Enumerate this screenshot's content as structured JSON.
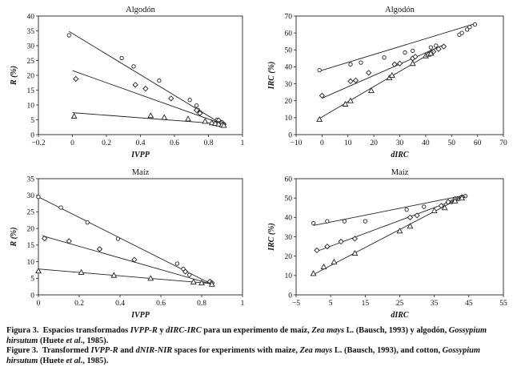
{
  "chart_data": [
    {
      "type": "scatter",
      "title": "Algodón",
      "xlabel": "IVPP",
      "ylabel": "R (%)",
      "xlim": [
        -0.2,
        1
      ],
      "ylim": [
        0,
        40
      ],
      "xticks": [
        "−0.2",
        "0",
        "0.2",
        "0.4",
        "0.6",
        "0.8",
        "1"
      ],
      "yticks": [
        "0",
        "5",
        "10",
        "15",
        "20",
        "25",
        "30",
        "35",
        "40"
      ],
      "series": [
        {
          "name": "circles",
          "marker": "circle",
          "x": [
            -0.02,
            0.29,
            0.36,
            0.51,
            0.69,
            0.73,
            0.74,
            0.75,
            0.85,
            0.87,
            0.88,
            0.89
          ],
          "y": [
            33.5,
            25.8,
            23.0,
            18.2,
            11.7,
            9.8,
            8.2,
            7.5,
            5.0,
            4.3,
            3.8,
            3.5
          ],
          "fit": [
            [
              -0.02,
              34.8
            ],
            [
              0.9,
              2.8
            ]
          ]
        },
        {
          "name": "diamonds",
          "marker": "diamond",
          "x": [
            0.02,
            0.37,
            0.43,
            0.58,
            0.73,
            0.75,
            0.86,
            0.88,
            0.89
          ],
          "y": [
            18.8,
            16.8,
            15.5,
            12.2,
            8.2,
            7.2,
            4.8,
            4.0,
            3.5
          ],
          "fit": [
            [
              0.0,
              21.6
            ],
            [
              0.9,
              3.2
            ]
          ]
        },
        {
          "name": "triangles",
          "marker": "triangle",
          "x": [
            0.01,
            0.46,
            0.54,
            0.68,
            0.78,
            0.82,
            0.84,
            0.86,
            0.88,
            0.89
          ],
          "y": [
            6.2,
            6.4,
            5.8,
            5.3,
            4.5,
            4.0,
            3.8,
            3.6,
            3.3,
            3.1
          ],
          "fit": [
            [
              0.0,
              7.4
            ],
            [
              0.9,
              3.5
            ]
          ]
        }
      ]
    },
    {
      "type": "scatter",
      "title": "Algodón",
      "xlabel": "dIRC",
      "ylabel": "IRC (%)",
      "xlim": [
        -10,
        70
      ],
      "ylim": [
        0,
        70
      ],
      "xticks": [
        "−10",
        "0",
        "10",
        "20",
        "30",
        "40",
        "50",
        "60",
        "70"
      ],
      "yticks": [
        "0",
        "10",
        "20",
        "30",
        "40",
        "50",
        "60",
        "70"
      ],
      "series": [
        {
          "name": "circles",
          "marker": "circle",
          "x": [
            -1,
            11,
            15,
            24,
            32,
            35,
            42,
            44,
            53,
            54,
            56,
            57,
            59
          ],
          "y": [
            38,
            41.5,
            42.5,
            45.5,
            48.5,
            49.5,
            51.5,
            52.5,
            59,
            60,
            62,
            63.5,
            65
          ],
          "fit": [
            [
              -1,
              37.5
            ],
            [
              59,
              65.5
            ]
          ]
        },
        {
          "name": "diamonds",
          "marker": "diamond",
          "x": [
            0,
            11,
            13,
            18,
            28,
            30,
            35,
            36,
            42,
            43,
            45,
            47
          ],
          "y": [
            23,
            31.5,
            32,
            36.5,
            41.5,
            42,
            45,
            46,
            48.5,
            49,
            50.5,
            52
          ],
          "fit": [
            [
              0,
              21.5
            ],
            [
              47,
              53
            ]
          ]
        },
        {
          "name": "triangles",
          "marker": "triangle",
          "x": [
            -1,
            9,
            11,
            19,
            26,
            27,
            35,
            40,
            41,
            42
          ],
          "y": [
            9,
            18,
            20,
            26,
            33.5,
            35,
            42,
            46.5,
            47.5,
            48
          ],
          "fit": [
            [
              -1,
              9.5
            ],
            [
              43,
              49
            ]
          ]
        }
      ]
    },
    {
      "type": "scatter",
      "title": "Maíz",
      "xlabel": "IVPP",
      "ylabel": "R (%)",
      "xlim": [
        0,
        1
      ],
      "ylim": [
        0,
        35
      ],
      "xticks": [
        "0",
        "0.2",
        "0.4",
        "0.6",
        "0.8",
        "1"
      ],
      "yticks": [
        "0",
        "5",
        "10",
        "15",
        "20",
        "25",
        "30",
        "35"
      ],
      "series": [
        {
          "name": "circles",
          "marker": "circle",
          "x": [
            0.0,
            0.11,
            0.24,
            0.39,
            0.68,
            0.71,
            0.74,
            0.84,
            0.85
          ],
          "y": [
            29.5,
            26.3,
            21.8,
            16.9,
            9.4,
            7.8,
            6.0,
            3.9,
            3.5
          ],
          "fit": [
            [
              0.0,
              29.5
            ],
            [
              0.85,
              3.2
            ]
          ]
        },
        {
          "name": "diamonds",
          "marker": "diamond",
          "x": [
            0.03,
            0.15,
            0.3,
            0.47,
            0.72,
            0.84,
            0.85
          ],
          "y": [
            17.0,
            16.2,
            13.8,
            10.6,
            7.0,
            4.0,
            3.6
          ],
          "fit": [
            [
              0.02,
              17.8
            ],
            [
              0.85,
              3.2
            ]
          ]
        },
        {
          "name": "triangles",
          "marker": "triangle",
          "x": [
            0.0,
            0.21,
            0.37,
            0.55,
            0.76,
            0.8,
            0.85
          ],
          "y": [
            7.2,
            6.8,
            5.9,
            5.0,
            3.9,
            3.6,
            3.2
          ],
          "fit": [
            [
              0.0,
              7.8
            ],
            [
              0.85,
              3.4
            ]
          ]
        }
      ]
    },
    {
      "type": "scatter",
      "title": "Maíz",
      "xlabel": "dIRC",
      "ylabel": "IRC (%)",
      "xlim": [
        -5,
        55
      ],
      "ylim": [
        0,
        60
      ],
      "xticks": [
        "−5",
        "5",
        "15",
        "25",
        "35",
        "45",
        "55"
      ],
      "yticks": [
        "0",
        "10",
        "20",
        "30",
        "40",
        "50",
        "60"
      ],
      "series": [
        {
          "name": "circles",
          "marker": "circle",
          "x": [
            0,
            4,
            9,
            15,
            27,
            32,
            40,
            41,
            42,
            43,
            44
          ],
          "y": [
            37,
            38,
            38,
            38,
            44,
            45.5,
            48,
            49,
            49.5,
            50.5,
            51
          ],
          "fit": [
            [
              0,
              35.8
            ],
            [
              44,
              51.5
            ]
          ]
        },
        {
          "name": "diamonds",
          "marker": "diamond",
          "x": [
            1,
            4,
            8,
            12,
            28,
            30,
            37,
            39,
            41,
            43
          ],
          "y": [
            23,
            25,
            27.5,
            29,
            40,
            41,
            46,
            48,
            49.5,
            50.5
          ],
          "fit": [
            [
              1,
              22.5
            ],
            [
              44,
              51
            ]
          ]
        },
        {
          "name": "triangles",
          "marker": "triangle",
          "x": [
            0,
            3,
            6,
            12,
            25,
            28,
            35,
            38,
            41,
            43
          ],
          "y": [
            11,
            14.5,
            17,
            21.5,
            33,
            35.5,
            43.5,
            45,
            48.5,
            50
          ],
          "fit": [
            [
              0,
              10.5
            ],
            [
              43,
              50.5
            ]
          ]
        }
      ]
    }
  ],
  "caption": {
    "es": {
      "label": "Figura 3.",
      "text1": "Espacios transformados ",
      "term1": "IVPP-R",
      "text2": " y ",
      "term2": "dIRC-IRC",
      "text3": " para un experimento de maíz, ",
      "species1": "Zea mays",
      "text4": " L. (Bausch, 1993) y algodón, ",
      "species2": "Gossypium hirsutum",
      "text5": " (Huete ",
      "etal": "et al",
      "text6": "., 1985)."
    },
    "en": {
      "label": "Figure 3.",
      "text1": "Transformed ",
      "term1": "IVPP-R",
      "text2": " and ",
      "term2": "dNIR-NIR",
      "text3": " spaces for experiments with maize, ",
      "species1": "Zea mays",
      "text4": " L. (Bausch, 1993), and cotton, ",
      "species2": "Gossypium hirsutum",
      "text5": " (Huete ",
      "etal": "et al",
      "text6": "., 1985)."
    }
  }
}
